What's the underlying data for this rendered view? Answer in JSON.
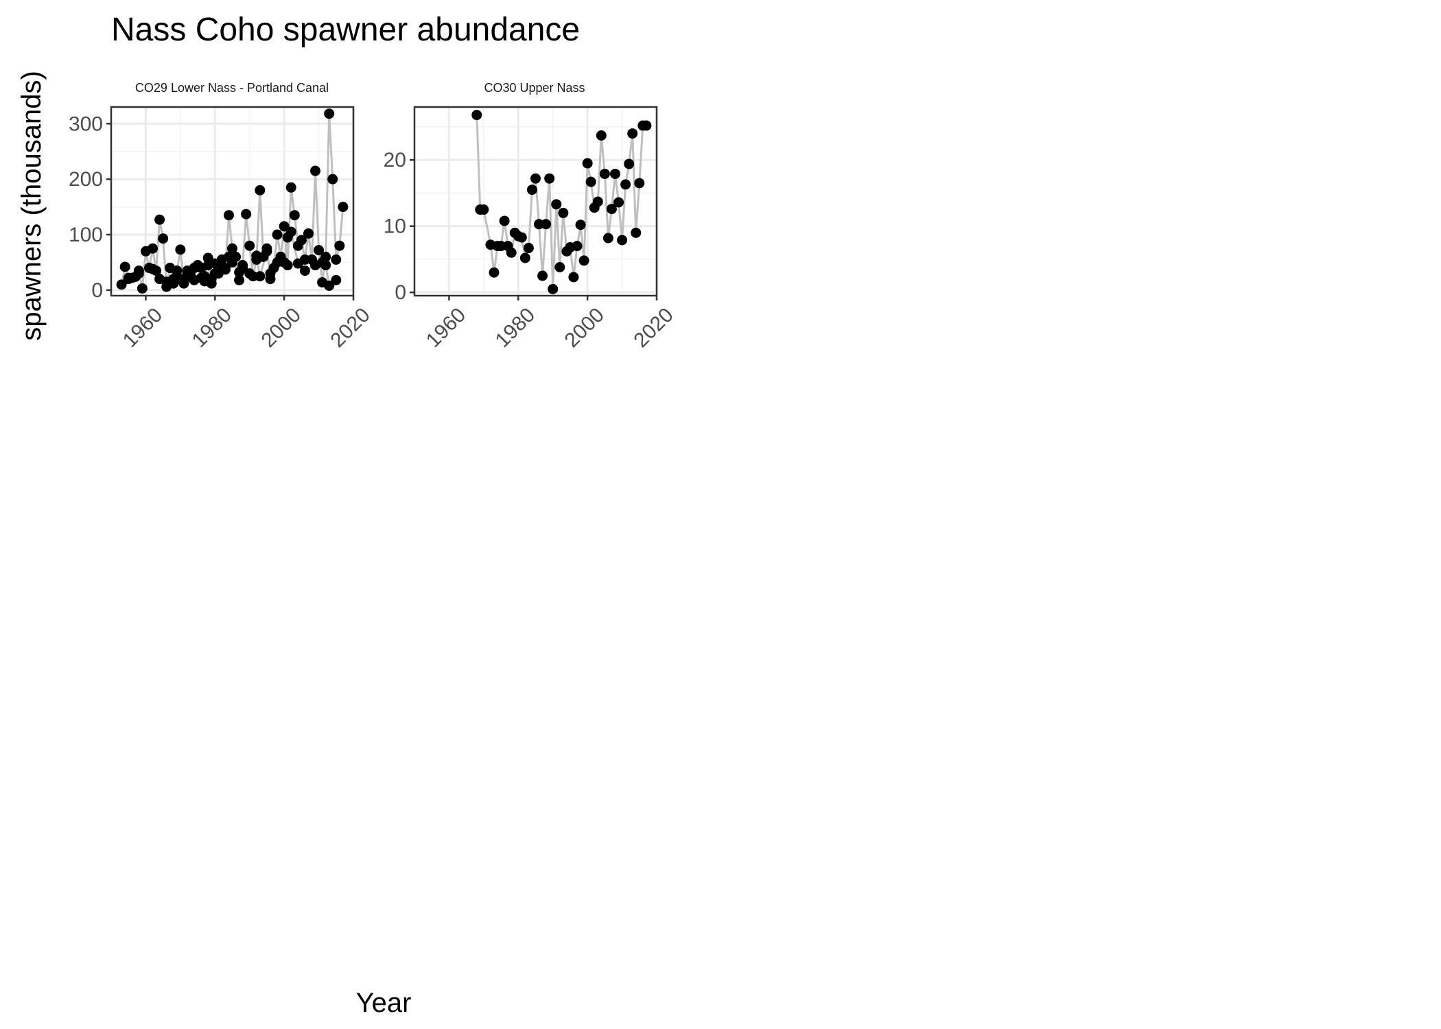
{
  "figure": {
    "title": "Nass Coho spawner abundance",
    "ylabel": "spawners (thousands)",
    "xlabel": "Year"
  },
  "colors": {
    "point": "#000000",
    "line": "#bfbfbf",
    "grid_major": "#ebebeb",
    "grid_minor": "#f3f3f3",
    "panel_border": "#333333",
    "tick_label": "#4d4d4d"
  },
  "chart_data": [
    {
      "type": "line",
      "panel_title": "CO29 Lower Nass - Portland Canal",
      "xlim": [
        1950,
        2020
      ],
      "ylim": [
        -10,
        330
      ],
      "x_ticks": [
        1960,
        1980,
        2000,
        2020
      ],
      "y_ticks": [
        0,
        100,
        200,
        300
      ],
      "grid": true,
      "series": [
        {
          "markers": true,
          "x": [
            1953,
            1954,
            1955,
            1956,
            1957,
            1958,
            1959,
            1960,
            1961,
            1962,
            1963,
            1964,
            1965,
            1966,
            1967,
            1968,
            1969,
            1970,
            1971,
            1972,
            1973,
            1974,
            1975,
            1976,
            1977,
            1978,
            1979,
            1980,
            1981,
            1982,
            1983,
            1984,
            1985,
            1986,
            1987,
            1988,
            1989,
            1990,
            1991,
            1992,
            1993,
            1994,
            1995,
            1996,
            1997,
            1998,
            1999,
            2000,
            2001,
            2002,
            2003,
            2004,
            2005,
            2006,
            2007,
            2008,
            2009,
            2010,
            2011,
            2012,
            2013,
            2014,
            2015,
            2016,
            2017
          ],
          "y": [
            10,
            42,
            22,
            22,
            24,
            35,
            3,
            70,
            40,
            75,
            35,
            127,
            93,
            6,
            40,
            20,
            35,
            73,
            14,
            29,
            34,
            40,
            45,
            40,
            25,
            45,
            12,
            48,
            30,
            42,
            37,
            135,
            75,
            60,
            18,
            45,
            137,
            80,
            25,
            55,
            180,
            60,
            75,
            20,
            40,
            100,
            60,
            115,
            45,
            185,
            135,
            80,
            90,
            55,
            102,
            55,
            215,
            72,
            14,
            60,
            318,
            200,
            55,
            80,
            150
          ]
        },
        {
          "markers": true,
          "x": [
            1955,
            1958,
            1962,
            1964,
            1966,
            1968,
            1969,
            1970,
            1971,
            1972,
            1973,
            1974,
            1976,
            1977,
            1978,
            1979,
            1980,
            1982,
            1983,
            1984,
            1985,
            1987,
            1988,
            1990,
            1992,
            1993,
            1995,
            1996,
            1998,
            2000,
            2001,
            2002,
            2004,
            2006,
            2009,
            2011,
            2012,
            2013,
            2015
          ],
          "y": [
            20,
            30,
            38,
            20,
            15,
            12,
            35,
            20,
            12,
            35,
            25,
            18,
            22,
            16,
            58,
            20,
            30,
            55,
            40,
            60,
            50,
            32,
            40,
            30,
            62,
            25,
            70,
            30,
            50,
            50,
            95,
            105,
            48,
            35,
            45,
            50,
            45,
            8,
            18
          ]
        }
      ]
    },
    {
      "type": "line",
      "panel_title": "CO30 Upper Nass",
      "xlim": [
        1950,
        2020
      ],
      "ylim": [
        -0.5,
        28
      ],
      "x_ticks": [
        1960,
        1980,
        2000,
        2020
      ],
      "y_ticks": [
        0,
        10,
        20
      ],
      "grid": true,
      "series": [
        {
          "markers": true,
          "x": [
            1968,
            1969,
            1970,
            1972,
            1973,
            1974,
            1975,
            1976,
            1977,
            1978,
            1979,
            1980,
            1981,
            1982,
            1983,
            1984,
            1985,
            1986,
            1987,
            1988,
            1989,
            1990,
            1991,
            1992,
            1993,
            1994,
            1995,
            1996,
            1997,
            1998,
            1999,
            2000,
            2001,
            2002,
            2003,
            2004,
            2005,
            2006,
            2007,
            2008,
            2009,
            2010,
            2011,
            2012,
            2013,
            2014,
            2015,
            2016,
            2017
          ],
          "y": [
            26.8,
            12.5,
            12.5,
            7.2,
            3.0,
            7.0,
            7.0,
            10.8,
            7.0,
            6.0,
            9.0,
            8.5,
            8.3,
            5.2,
            6.7,
            15.5,
            17.2,
            10.3,
            2.5,
            10.3,
            17.2,
            0.5,
            13.3,
            3.8,
            12.0,
            6.2,
            6.8,
            2.3,
            7.0,
            10.2,
            4.8,
            19.5,
            16.7,
            12.8,
            13.7,
            23.7,
            17.9,
            8.2,
            12.6,
            17.9,
            13.6,
            7.9,
            16.3,
            19.4,
            24.0,
            9.0,
            16.5,
            25.2,
            25.2
          ]
        }
      ]
    }
  ]
}
